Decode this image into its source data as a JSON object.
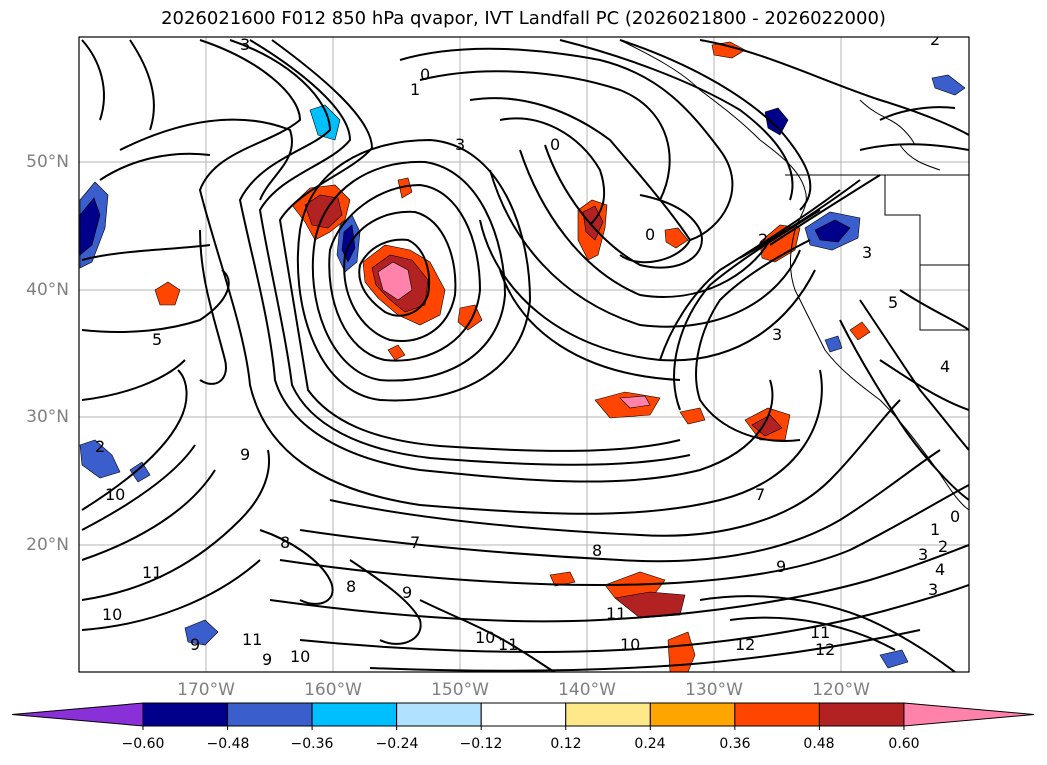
{
  "title": "2026021600 F012 850 hPa qvapor, IVT Landfall PC (2026021800 - 2026022000)",
  "lat_labels": [
    "50°N",
    "40°N",
    "30°N",
    "20°N"
  ],
  "lon_labels": [
    "170°W",
    "160°W",
    "150°W",
    "140°W",
    "130°W",
    "120°W"
  ],
  "colorbar": {
    "ticks": [
      "−0.60",
      "−0.48",
      "−0.36",
      "−0.24",
      "−0.12",
      "0.12",
      "0.24",
      "0.36",
      "0.48",
      "0.60"
    ],
    "colors": [
      "#8a30d8",
      "#00008b",
      "#3a5fcd",
      "#00bfff",
      "#b0e2ff",
      "#ffffff",
      "#ffe88a",
      "#ffa500",
      "#ff4500",
      "#b22222",
      "#ff82ab"
    ]
  },
  "contour_labels": [
    "3",
    "0",
    "2",
    "1",
    "3",
    "0",
    "0",
    "2",
    "3",
    "5",
    "4",
    "3",
    "5",
    "2",
    "9",
    "10",
    "11",
    "10",
    "9",
    "10",
    "11",
    "8",
    "9",
    "8",
    "10",
    "11",
    "7",
    "11",
    "12",
    "11",
    "12",
    "1",
    "2",
    "3",
    "4",
    "3",
    "0",
    "9",
    "7",
    "8",
    "9",
    "10"
  ],
  "colors": {
    "contour": "#000000",
    "grid": "#b4b4b4",
    "coast": "#000000",
    "axis_label": "#808080"
  }
}
